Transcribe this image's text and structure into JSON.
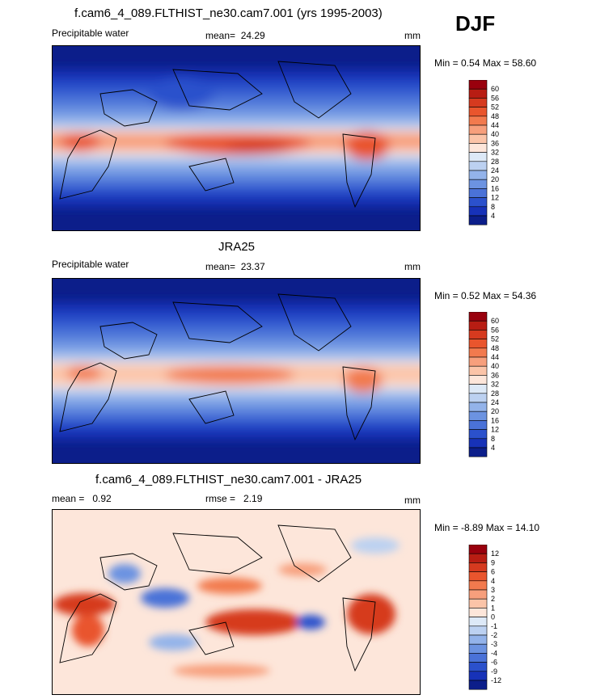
{
  "season": "DJF",
  "panels": [
    {
      "title": "f.cam6_4_089.FLTHIST_ne30.cam7.001 (yrs 1995-2003)",
      "variable": "Precipitable water",
      "stat_label": "mean=",
      "stat_value": "24.29",
      "units": "mm",
      "minmax": "Min =   0.54 Max =  58.60",
      "levels": [
        "60",
        "56",
        "52",
        "48",
        "44",
        "40",
        "36",
        "32",
        "28",
        "24",
        "20",
        "16",
        "12",
        "8",
        "4"
      ],
      "colors": [
        "#99000d",
        "#b81d13",
        "#d63a1f",
        "#e9552d",
        "#f27a4e",
        "#f79f7c",
        "#fbc4a8",
        "#fde6da",
        "#dde9f7",
        "#bcd1f1",
        "#93b3ea",
        "#6c93e1",
        "#4a72d8",
        "#2b51cc",
        "#1732b8",
        "#0c1e8a"
      ]
    },
    {
      "title": "JRA25",
      "variable": "Precipitable water",
      "stat_label": "mean=",
      "stat_value": "23.37",
      "units": "mm",
      "minmax": "Min =   0.52 Max =  54.36",
      "levels": [
        "60",
        "56",
        "52",
        "48",
        "44",
        "40",
        "36",
        "32",
        "28",
        "24",
        "20",
        "16",
        "12",
        "8",
        "4"
      ],
      "colors": [
        "#99000d",
        "#b81d13",
        "#d63a1f",
        "#e9552d",
        "#f27a4e",
        "#f79f7c",
        "#fbc4a8",
        "#fde6da",
        "#dde9f7",
        "#bcd1f1",
        "#93b3ea",
        "#6c93e1",
        "#4a72d8",
        "#2b51cc",
        "#1732b8",
        "#0c1e8a"
      ]
    },
    {
      "title": "f.cam6_4_089.FLTHIST_ne30.cam7.001 - JRA25",
      "stat_label": "mean =",
      "stat_value": "0.92",
      "stat2_label": "rmse =",
      "stat2_value": "2.19",
      "units": "mm",
      "minmax": "Min =  -8.89 Max =  14.10",
      "levels": [
        "12",
        "9",
        "6",
        "4",
        "3",
        "2",
        "1",
        "0",
        "-1",
        "-2",
        "-3",
        "-4",
        "-6",
        "-9",
        "-12"
      ],
      "colors": [
        "#99000d",
        "#b81d13",
        "#d63a1f",
        "#e9552d",
        "#f27a4e",
        "#f79f7c",
        "#fbc4a8",
        "#fde6da",
        "#dde9f7",
        "#bcd1f1",
        "#93b3ea",
        "#6c93e1",
        "#4a72d8",
        "#2b51cc",
        "#1732b8",
        "#0c1e8a"
      ]
    }
  ]
}
